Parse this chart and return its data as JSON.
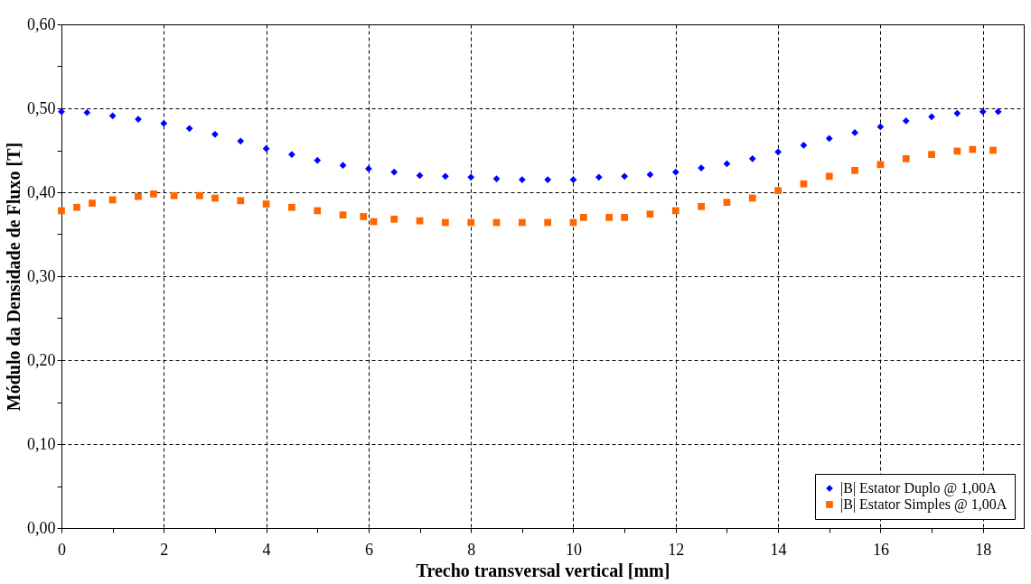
{
  "chart_data": {
    "type": "scatter",
    "xlabel": "Trecho transversal vertical [mm]",
    "ylabel": "Módulo da Densidade de Fluxo [T]",
    "xlim": [
      0,
      18.8
    ],
    "xticks": [
      0,
      {
        "value": 1,
        "label": null
      },
      2,
      {
        "value": 3,
        "label": null
      },
      4,
      {
        "value": 5,
        "label": null
      },
      6,
      {
        "value": 7,
        "label": null
      },
      8,
      {
        "value": 9,
        "label": null
      },
      10,
      {
        "value": 11,
        "label": null
      },
      12,
      {
        "value": 13,
        "label": null
      },
      14,
      {
        "value": 15,
        "label": null
      },
      16,
      {
        "value": 17,
        "label": null
      },
      18
    ],
    "ylim": [
      0,
      0.6
    ],
    "yticks": [
      {
        "value": 0,
        "label": "0,00"
      },
      {
        "value": 0.05,
        "label": null
      },
      {
        "value": 0.1,
        "label": "0,10"
      },
      {
        "value": 0.15,
        "label": null
      },
      {
        "value": 0.2,
        "label": "0,20"
      },
      {
        "value": 0.25,
        "label": null
      },
      {
        "value": 0.3,
        "label": "0,30"
      },
      {
        "value": 0.35,
        "label": null
      },
      {
        "value": 0.4,
        "label": "0,40"
      },
      {
        "value": 0.45,
        "label": null
      },
      {
        "value": 0.5,
        "label": "0,50"
      },
      {
        "value": 0.55,
        "label": null
      },
      {
        "value": 0.6,
        "label": "0,60"
      }
    ],
    "grid": true,
    "legend": "bottom right",
    "line_style": "dashed",
    "series": [
      {
        "name": "|B| Estator Duplo @ 1,00A",
        "color": "#0000ff",
        "marker": "diamond",
        "x": [
          0,
          0.5,
          1,
          1.5,
          2,
          2.5,
          3,
          3.5,
          4,
          4.5,
          5,
          5.5,
          6,
          6.5,
          7,
          7.5,
          8,
          8.5,
          9,
          9.5,
          10,
          10.5,
          11,
          11.5,
          12,
          12.5,
          13,
          13.5,
          14,
          14.5,
          15,
          15.5,
          16,
          16.5,
          17,
          17.5,
          18,
          18.3
        ],
        "values": [
          0.496,
          0.495,
          0.491,
          0.487,
          0.482,
          0.476,
          0.469,
          0.461,
          0.452,
          0.445,
          0.438,
          0.432,
          0.428,
          0.424,
          0.42,
          0.419,
          0.418,
          0.416,
          0.415,
          0.415,
          0.415,
          0.418,
          0.419,
          0.421,
          0.424,
          0.429,
          0.434,
          0.44,
          0.448,
          0.456,
          0.464,
          0.471,
          0.478,
          0.485,
          0.49,
          0.494,
          0.496,
          0.496
        ]
      },
      {
        "name": "|B| Estator Simples @ 1,00A",
        "color": "#ff6600",
        "marker": "square",
        "x": [
          0,
          0.3,
          0.6,
          1,
          1.5,
          1.8,
          2.2,
          2.7,
          3,
          3.5,
          4,
          4.5,
          5,
          5.5,
          5.9,
          6.1,
          6.5,
          7,
          7.5,
          8,
          8.5,
          9,
          9.5,
          10,
          10.2,
          10.7,
          11,
          11.5,
          12,
          12.5,
          13,
          13.5,
          14,
          14.5,
          15,
          15.5,
          16,
          16.5,
          17,
          17.5,
          17.8,
          18.2
        ],
        "values": [
          0.378,
          0.382,
          0.387,
          0.391,
          0.395,
          0.398,
          0.396,
          0.396,
          0.393,
          0.39,
          0.386,
          0.382,
          0.378,
          0.373,
          0.371,
          0.365,
          0.368,
          0.366,
          0.364,
          0.364,
          0.364,
          0.364,
          0.364,
          0.364,
          0.37,
          0.37,
          0.37,
          0.374,
          0.378,
          0.383,
          0.388,
          0.393,
          0.402,
          0.41,
          0.419,
          0.426,
          0.433,
          0.44,
          0.445,
          0.449,
          0.451,
          0.45
        ]
      }
    ]
  }
}
